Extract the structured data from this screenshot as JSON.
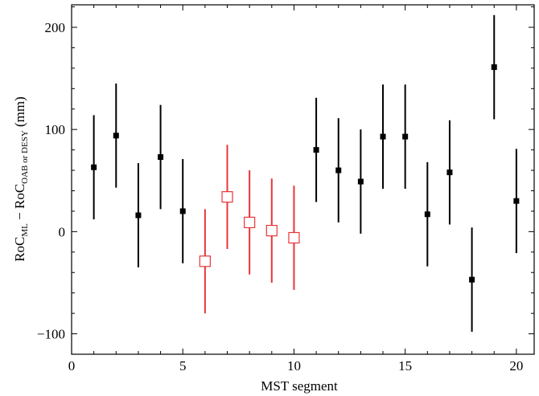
{
  "chart_data": {
    "type": "scatter",
    "title": "",
    "xlabel": "MST segment",
    "ylabel": {
      "prefix": "RoC",
      "sub1": "ML",
      "mid": " − RoC",
      "sub2": "OAB or DESY",
      "suffix": " (mm)"
    },
    "xlim": [
      0,
      20.8
    ],
    "ylim": [
      -120,
      222
    ],
    "x_ticks": [
      0,
      5,
      10,
      15,
      20
    ],
    "y_ticks": [
      -100,
      0,
      100,
      200
    ],
    "x_tick_labels": [
      "0",
      "5",
      "10",
      "15",
      "20"
    ],
    "y_tick_labels": [
      "−100",
      "0",
      "100",
      "200"
    ],
    "grid": false,
    "legend": "none",
    "series": [
      {
        "color": "#000000",
        "marker": "filled-square",
        "points": [
          {
            "x": 1,
            "y": 63,
            "err": 51
          },
          {
            "x": 2,
            "y": 94,
            "err": 51
          },
          {
            "x": 3,
            "y": 16,
            "err": 51
          },
          {
            "x": 4,
            "y": 73,
            "err": 51
          },
          {
            "x": 5,
            "y": 20,
            "err": 51
          },
          {
            "x": 11,
            "y": 80,
            "err": 51
          },
          {
            "x": 12,
            "y": 60,
            "err": 51
          },
          {
            "x": 13,
            "y": 49,
            "err": 51
          },
          {
            "x": 14,
            "y": 93,
            "err": 51
          },
          {
            "x": 15,
            "y": 93,
            "err": 51
          },
          {
            "x": 16,
            "y": 17,
            "err": 51
          },
          {
            "x": 17,
            "y": 58,
            "err": 51
          },
          {
            "x": 18,
            "y": -47,
            "err": 51
          },
          {
            "x": 19,
            "y": 161,
            "err": 51
          },
          {
            "x": 20,
            "y": 30,
            "err": 51
          }
        ]
      },
      {
        "color": "#e8363a",
        "marker": "open-square",
        "points": [
          {
            "x": 6,
            "y": -29,
            "err": 51
          },
          {
            "x": 7,
            "y": 34,
            "err": 51
          },
          {
            "x": 8,
            "y": 9,
            "err": 51
          },
          {
            "x": 9,
            "y": 1,
            "err": 51
          },
          {
            "x": 10,
            "y": -6,
            "err": 51
          }
        ]
      }
    ]
  }
}
